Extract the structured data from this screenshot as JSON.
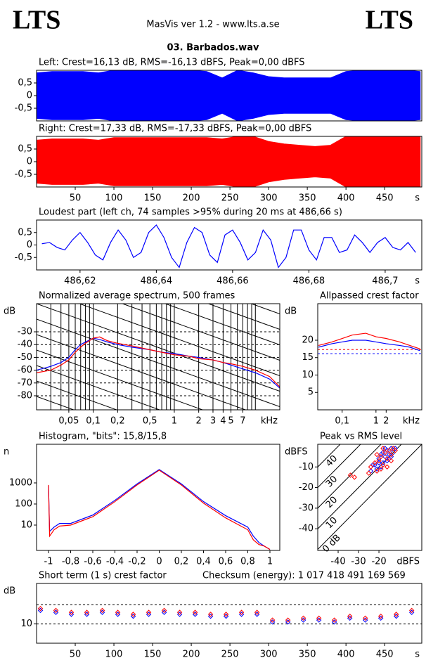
{
  "header": {
    "left_logo": "LTS",
    "title": "MasVis ver 1.2 - www.lts.a.se",
    "right_logo": "LTS",
    "file": "03. Barbados.wav"
  },
  "chart_data": [
    {
      "type": "waveform",
      "title": "Left: Crest=16,13 dB, RMS=-16,13 dBFS, Peak=0,00 dBFS",
      "xlim": [
        0,
        498
      ],
      "ylim": [
        -1,
        1
      ],
      "yticks": [
        {
          "value": 0.5,
          "label": "0,5"
        },
        0,
        {
          "value": -0.5,
          "label": "-0,5"
        }
      ],
      "x": [
        0,
        20,
        40,
        60,
        80,
        100,
        120,
        140,
        160,
        180,
        200,
        220,
        240,
        260,
        280,
        300,
        320,
        340,
        360,
        380,
        400,
        420,
        440,
        460,
        480,
        496
      ],
      "series": [
        {
          "color": "#0000ff",
          "values": [
            0.9,
            0.95,
            0.95,
            0.95,
            0.9,
            1,
            1,
            1,
            1,
            1,
            1,
            0.95,
            0.7,
            1,
            0.9,
            0.75,
            0.7,
            0.7,
            0.7,
            0.7,
            0.95,
            1,
            1,
            1,
            1,
            0.95
          ]
        }
      ]
    },
    {
      "type": "waveform",
      "title": "Right: Crest=17,33 dB, RMS=-17,33 dBFS, Peak=0,00 dBFS",
      "xlim": [
        0,
        498
      ],
      "ylim": [
        -1,
        1
      ],
      "yticks": [
        {
          "value": 0.5,
          "label": "0,5"
        },
        0,
        {
          "value": -0.5,
          "label": "-0,5"
        }
      ],
      "xticks": [
        50,
        100,
        150,
        200,
        250,
        300,
        350,
        400,
        450
      ],
      "x_unit": "s",
      "x": [
        0,
        20,
        40,
        60,
        80,
        100,
        120,
        140,
        160,
        180,
        200,
        220,
        240,
        260,
        280,
        300,
        320,
        340,
        360,
        380,
        400,
        420,
        440,
        460,
        480,
        496
      ],
      "series": [
        {
          "color": "#ff0000",
          "values": [
            0.85,
            0.9,
            0.9,
            0.9,
            0.85,
            0.95,
            0.95,
            0.95,
            0.95,
            0.95,
            0.95,
            0.95,
            0.9,
            1,
            1,
            0.8,
            0.7,
            0.65,
            0.6,
            0.65,
            1,
            1,
            1,
            1,
            1,
            1
          ]
        }
      ]
    },
    {
      "type": "line",
      "title": "Loudest part (left  ch, 74 samples >95% during 20 ms at 486,66 s)",
      "xlim": [
        486.6086,
        486.7096
      ],
      "ylim": [
        -1,
        1
      ],
      "yticks": [
        {
          "value": 0.5,
          "label": "0,5"
        },
        0,
        {
          "value": -0.5,
          "label": "-0,5"
        }
      ],
      "xticks": [
        {
          "value": 486.62,
          "label": "486,62"
        },
        {
          "value": 486.64,
          "label": "486,64"
        },
        {
          "value": 486.66,
          "label": "486,66"
        },
        {
          "value": 486.68,
          "label": "486,68"
        },
        {
          "value": 486.7,
          "label": "486,7"
        }
      ],
      "x_unit": "s",
      "x": [
        486.61,
        486.612,
        486.614,
        486.616,
        486.618,
        486.62,
        486.622,
        486.624,
        486.626,
        486.628,
        486.63,
        486.632,
        486.634,
        486.636,
        486.638,
        486.64,
        486.642,
        486.644,
        486.646,
        486.648,
        486.65,
        486.652,
        486.654,
        486.656,
        486.658,
        486.66,
        486.662,
        486.664,
        486.666,
        486.668,
        486.67,
        486.672,
        486.674,
        486.676,
        486.678,
        486.68,
        486.682,
        486.684,
        486.686,
        486.688,
        486.69,
        486.692,
        486.694,
        486.696,
        486.698,
        486.7,
        486.702,
        486.704,
        486.706,
        486.708
      ],
      "series": [
        {
          "color": "#0000ff",
          "values": [
            0.05,
            0.1,
            -0.1,
            -0.2,
            0.2,
            0.5,
            0.1,
            -0.4,
            -0.6,
            0.1,
            0.6,
            0.2,
            -0.5,
            -0.3,
            0.5,
            0.8,
            0.3,
            -0.5,
            -0.9,
            0.1,
            0.7,
            0.5,
            -0.4,
            -0.7,
            0.4,
            0.6,
            0.1,
            -0.6,
            -0.3,
            0.6,
            0.2,
            -0.9,
            -0.5,
            0.6,
            0.6,
            -0.2,
            -0.6,
            0.3,
            0.3,
            -0.3,
            -0.2,
            0.4,
            0.1,
            -0.3,
            0.1,
            0.3,
            -0.1,
            -0.2,
            0.1,
            -0.3
          ]
        }
      ]
    },
    {
      "type": "line",
      "title": "Normalized average spectrum, 500 frames",
      "xlog": true,
      "grid": true,
      "diagonals": true,
      "xlim": [
        0.02,
        20
      ],
      "ylim": [
        -91,
        -8
      ],
      "yticks": [
        -30,
        -40,
        -50,
        -60,
        -70,
        -80
      ],
      "y_unit": "dB",
      "x_unit": "kHz",
      "xticks": [
        {
          "value": 0.05,
          "label": "0,05"
        },
        {
          "value": 0.1,
          "label": "0,1"
        },
        {
          "value": 0.2,
          "label": "0,2"
        },
        {
          "value": 0.5,
          "label": "0,5"
        },
        1,
        2,
        3,
        4,
        5,
        7
      ],
      "xgrid": [
        0.03,
        0.04,
        0.05,
        0.06,
        0.07,
        0.08,
        0.09,
        0.1,
        0.2,
        0.3,
        0.4,
        0.5,
        0.6,
        0.7,
        0.8,
        0.9,
        1,
        2,
        3,
        4,
        5,
        6,
        7,
        8,
        9,
        10
      ],
      "x": [
        0.02,
        0.03,
        0.04,
        0.05,
        0.06,
        0.07,
        0.08,
        0.1,
        0.12,
        0.15,
        0.2,
        0.3,
        0.5,
        0.7,
        1,
        1.5,
        2,
        3,
        4,
        5,
        7,
        10,
        15,
        20
      ],
      "series": [
        {
          "color": "#0000ff",
          "values": [
            -60,
            -57,
            -54,
            -50,
            -44,
            -40,
            -38,
            -35,
            -36,
            -38,
            -40,
            -42,
            -44,
            -46,
            -47,
            -49,
            -50,
            -52,
            -54,
            -56,
            -59,
            -62,
            -67,
            -74
          ]
        },
        {
          "color": "#ff0000",
          "values": [
            -62,
            -60,
            -56,
            -52,
            -46,
            -42,
            -39,
            -35,
            -34,
            -37,
            -39,
            -41,
            -44,
            -46,
            -48,
            -49,
            -51,
            -52,
            -54,
            -55,
            -57,
            -60,
            -65,
            -73
          ]
        }
      ]
    },
    {
      "type": "line",
      "title": "Allpassed crest factor",
      "xlog": true,
      "xlim": [
        0.019,
        22.6
      ],
      "ylim": [
        0,
        30.5
      ],
      "yticks": [
        20,
        15,
        10,
        5
      ],
      "y_unit": "dB",
      "x_unit": "kHz",
      "xticks": [
        {
          "value": 0.1,
          "label": "0,1"
        },
        1,
        2
      ],
      "levels": [
        {
          "value": 17.33,
          "color": "#ff0000"
        },
        {
          "value": 16.13,
          "color": "#0000ff"
        }
      ],
      "x": [
        0.02,
        0.05,
        0.1,
        0.2,
        0.5,
        1,
        2,
        5,
        10,
        20
      ],
      "series": [
        {
          "color": "#ff0000",
          "values": [
            18.5,
            19.5,
            20.5,
            21.5,
            22,
            21,
            20.5,
            19.5,
            18.5,
            17.5
          ]
        },
        {
          "color": "#0000ff",
          "values": [
            18,
            19,
            19.5,
            20,
            20,
            19.5,
            19,
            18.5,
            18,
            17
          ]
        }
      ]
    },
    {
      "type": "line",
      "title": "Histogram, \"bits\": 15,8/15,8",
      "ylog": true,
      "xlim": [
        -1.108,
        1.089
      ],
      "ylim": [
        0.63,
        68000
      ],
      "yticks": [
        1000,
        100,
        10
      ],
      "y_unit": "n",
      "xticks": [
        -1,
        {
          "value": -0.8,
          "label": "-0,8"
        },
        {
          "value": -0.6,
          "label": "-0,6"
        },
        {
          "value": -0.4,
          "label": "-0,4"
        },
        {
          "value": -0.2,
          "label": "-0,2"
        },
        0,
        {
          "value": 0.2,
          "label": "0,2"
        },
        {
          "value": 0.4,
          "label": "0,4"
        },
        {
          "value": 0.6,
          "label": "0,6"
        },
        {
          "value": 0.8,
          "label": "0,8"
        },
        1
      ],
      "x": [
        -1,
        -0.99,
        -0.95,
        -0.9,
        -0.8,
        -0.6,
        -0.4,
        -0.2,
        0,
        0.2,
        0.4,
        0.6,
        0.8,
        0.85,
        0.9,
        0.95,
        1
      ],
      "series": [
        {
          "color": "#0000ff",
          "values": [
            700,
            5,
            8,
            12,
            12,
            30,
            150,
            900,
            4300,
            900,
            130,
            28,
            8,
            3,
            1.5,
            1,
            0.7
          ]
        },
        {
          "color": "#ff0000",
          "values": [
            800,
            3,
            6,
            9,
            10,
            25,
            130,
            800,
            4000,
            800,
            110,
            22,
            6,
            2,
            1.2,
            1,
            0.7
          ]
        }
      ]
    },
    {
      "type": "scatter",
      "title": "Peak vs RMS level",
      "xlim": [
        -50,
        1
      ],
      "ylim": [
        -50.5,
        1
      ],
      "xticks": [
        -40,
        -30,
        -20
      ],
      "yticks": [
        -10,
        -20,
        -30,
        -40
      ],
      "x_unit": "dBFS",
      "y_unit": "dBFS",
      "crest_lines": [
        {
          "value": 0,
          "label": "0 dB"
        },
        10,
        20,
        30,
        40
      ],
      "series": [
        {
          "color": "#0000ff",
          "x": [
            -24,
            -22,
            -21,
            -20,
            -19,
            -18,
            -18,
            -17,
            -16,
            -15,
            -14,
            -13,
            -12,
            -20,
            -23,
            -17,
            -15,
            -19,
            -14,
            -16
          ],
          "values": [
            -12,
            -9,
            -11,
            -6,
            -4,
            -8,
            -3,
            -5,
            -2,
            -6,
            -1,
            -3,
            -1,
            -8,
            -9,
            -1,
            -4,
            -10,
            -5,
            -7
          ]
        },
        {
          "color": "#ff0000",
          "x": [
            -34,
            -32,
            -25,
            -24,
            -22,
            -21,
            -20,
            -19,
            -18,
            -17,
            -16,
            -15,
            -14,
            -13,
            -12,
            -21,
            -18,
            -16,
            -14,
            -19
          ],
          "values": [
            -14,
            -15,
            -13,
            -10,
            -8,
            -12,
            -7,
            -5,
            -9,
            -3,
            -6,
            -2,
            -4,
            -1,
            -2,
            -4,
            -1,
            -10,
            -7,
            -11
          ]
        }
      ]
    },
    {
      "type": "scatter",
      "title": "Short term (1 s) crest factor",
      "note": "Checksum (energy):  1 017 418 491 169 569",
      "xlim": [
        0,
        498
      ],
      "ylim": [
        0,
        31
      ],
      "yticks": [
        10
      ],
      "y_unit": "dB",
      "x_unit": "s",
      "xticks": [
        50,
        100,
        150,
        200,
        250,
        300,
        350,
        400,
        450
      ],
      "levels": [
        {
          "value": 20,
          "color": "#000000"
        },
        {
          "value": 10,
          "color": "#000000"
        }
      ],
      "series": [
        {
          "color": "#0000ff",
          "x": [
            5,
            25,
            45,
            65,
            85,
            105,
            125,
            145,
            165,
            185,
            205,
            225,
            245,
            265,
            285,
            305,
            325,
            345,
            365,
            385,
            405,
            425,
            445,
            465,
            485
          ],
          "values": [
            17,
            16,
            15,
            15,
            16,
            15,
            14,
            15,
            16,
            15,
            15,
            14,
            14,
            15,
            15,
            11,
            11,
            12,
            12,
            11,
            13,
            12,
            13,
            14,
            16
          ]
        },
        {
          "color": "#ff0000",
          "x": [
            5,
            25,
            45,
            65,
            85,
            105,
            125,
            145,
            165,
            185,
            205,
            225,
            245,
            265,
            285,
            305,
            325,
            345,
            365,
            385,
            405,
            425,
            445,
            465,
            485
          ],
          "values": [
            18,
            17,
            16,
            16,
            17,
            16,
            15,
            16,
            17,
            16,
            16,
            15,
            15,
            16,
            16,
            12,
            12,
            13,
            13,
            12,
            14,
            13,
            14,
            15,
            17
          ]
        }
      ]
    }
  ]
}
